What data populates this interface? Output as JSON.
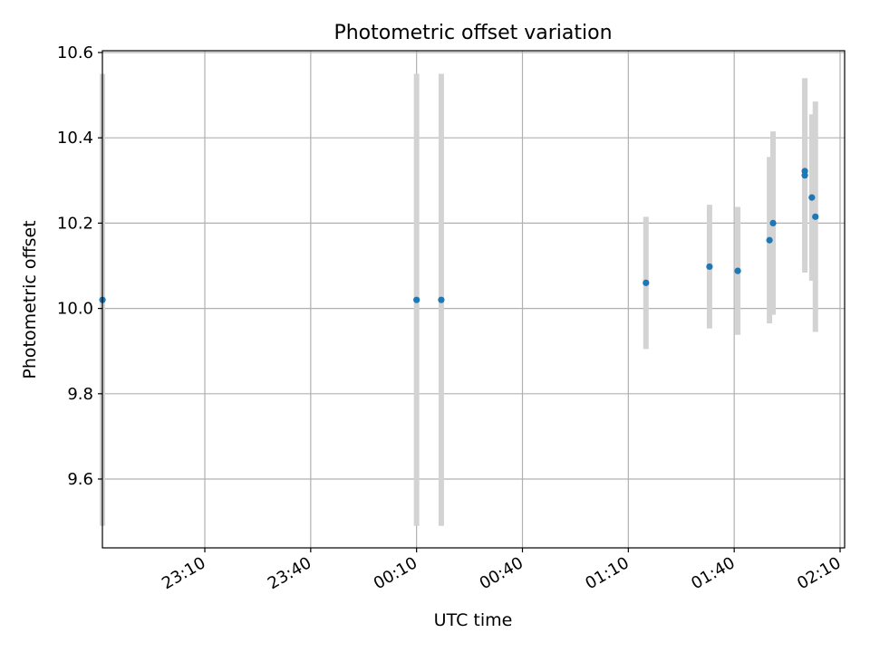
{
  "chart_data": {
    "type": "scatter",
    "title": "Photometric offset variation",
    "xlabel": "UTC time",
    "ylabel": "Photometric offset",
    "grid": true,
    "x_ticks": [
      "23:10",
      "23:40",
      "00:10",
      "00:40",
      "01:10",
      "01:40",
      "02:10"
    ],
    "y_ticks": [
      "9.6",
      "9.8",
      "10.0",
      "10.2",
      "10.4",
      "10.6"
    ],
    "xlim": [
      "22:41",
      "02:15"
    ],
    "ylim": [
      9.44,
      10.6
    ],
    "x_tick_values": [
      "23:10",
      "23:40",
      "00:10",
      "00:40",
      "01:10",
      "01:40",
      "02:10"
    ],
    "y_tick_values": [
      9.6,
      9.8,
      10.0,
      10.2,
      10.4,
      10.6
    ],
    "points": [
      {
        "x": "22:41",
        "y": 10.02,
        "err": 0.53
      },
      {
        "x": "00:10",
        "y": 10.02,
        "err": 0.53
      },
      {
        "x": "00:17",
        "y": 10.02,
        "err": 0.53
      },
      {
        "x": "01:15",
        "y": 10.06,
        "err": 0.155
      },
      {
        "x": "01:33",
        "y": 10.098,
        "err": 0.145
      },
      {
        "x": "01:41",
        "y": 10.088,
        "err": 0.15
      },
      {
        "x": "01:50",
        "y": 10.16,
        "err": 0.195
      },
      {
        "x": "01:51",
        "y": 10.2,
        "err": 0.215
      },
      {
        "x": "02:00",
        "y": 10.312,
        "err": 0.228
      },
      {
        "x": "02:00",
        "y": 10.322,
        "err": 0.212
      },
      {
        "x": "02:02",
        "y": 10.26,
        "err": 0.195
      },
      {
        "x": "02:03",
        "y": 10.215,
        "err": 0.27
      }
    ],
    "marker_color": "#1f77b4",
    "errorbar_color": "#d3d3d3"
  }
}
